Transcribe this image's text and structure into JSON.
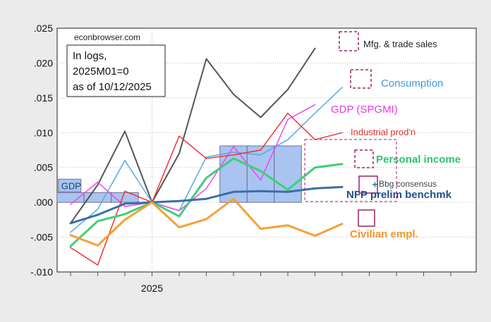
{
  "chart_data": {
    "type": "line",
    "title": "",
    "source": "econbrowser.com",
    "note": [
      "In logs,",
      "2025M01=0",
      "as of 10/12/2025"
    ],
    "xlabel": "",
    "ylabel": "",
    "x": [
      "2024M10",
      "2024M11",
      "2024M12",
      "2025M01",
      "2025M02",
      "2025M03",
      "2025M04",
      "2025M05",
      "2025M06",
      "2025M07",
      "2025M08",
      "2025M09",
      "2025M10",
      "2025M11",
      "2025M12"
    ],
    "x_tick_labels": [
      {
        "x": "2025M01",
        "label": "2025"
      }
    ],
    "ylim": [
      -0.01,
      0.025
    ],
    "y_ticks": [
      -0.01,
      -0.005,
      0.0,
      0.005,
      0.01,
      0.015,
      0.02,
      0.025
    ],
    "y_tick_labels": [
      "-.010",
      "-.005",
      ".000",
      ".005",
      ".010",
      ".015",
      ".020",
      ".025"
    ],
    "gdp_bars": {
      "name": "GDP",
      "color": "#a9c4f0",
      "edge": "#6f6f8f",
      "values": [
        {
          "from": "2024M10",
          "to": "2024M12",
          "value": 0.0014
        },
        {
          "from": "2025M01",
          "to": "2025M03",
          "value": 0.0
        },
        {
          "from": "2025M04",
          "to": "2025M06",
          "value": 0.0081
        }
      ]
    },
    "series": [
      {
        "name": "Mfg. & trade sales",
        "color": "#555555",
        "width": 2,
        "values": [
          -0.003,
          0.0025,
          0.0102,
          0.0,
          0.007,
          0.0206,
          0.0155,
          0.0122,
          0.0162,
          0.0221,
          null,
          null,
          null,
          null,
          null
        ]
      },
      {
        "name": "Consumption",
        "color": "#55a8e8",
        "width": 1.5,
        "values": [
          -0.0043,
          -0.001,
          0.006,
          0.0,
          -0.0012,
          0.0065,
          0.0072,
          0.0068,
          0.009,
          0.0128,
          0.0165,
          null,
          null,
          null,
          null
        ]
      },
      {
        "name": "GDP (SPGMI)",
        "color": "#ee44ee",
        "width": 1.5,
        "values": [
          -0.0003,
          0.0029,
          -0.0006,
          0.0,
          -0.0012,
          0.002,
          0.008,
          0.0032,
          0.0119,
          0.014,
          null,
          null,
          null,
          null,
          null
        ]
      },
      {
        "name": "Industrial prod'n",
        "color": "#ee3333",
        "width": 1.5,
        "values": [
          -0.0065,
          -0.009,
          0.0016,
          0.0,
          0.0095,
          0.0063,
          0.0068,
          0.0075,
          0.0128,
          0.009,
          0.01,
          null,
          null,
          null,
          null
        ]
      },
      {
        "name": "Personal income",
        "color": "#3ecf7a",
        "width": 3,
        "values": [
          -0.0063,
          -0.0027,
          -0.0017,
          0.0,
          -0.002,
          0.0035,
          0.0063,
          0.0045,
          0.0018,
          0.005,
          0.0055,
          null,
          null,
          null,
          null
        ]
      },
      {
        "name": "NFP prelim benchmk",
        "color": "#3b6ea8",
        "width": 3,
        "values": [
          -0.003,
          -0.0018,
          -0.0002,
          0.0,
          0.0002,
          0.0005,
          0.0015,
          0.0016,
          0.0015,
          0.002,
          0.0022,
          null,
          null,
          null,
          null
        ]
      },
      {
        "name": "Civilian empl.",
        "color": "#f7a035",
        "width": 3,
        "values": [
          -0.0047,
          -0.0062,
          -0.0025,
          0.0,
          -0.0036,
          -0.0024,
          0.0005,
          -0.0038,
          -0.0033,
          -0.0048,
          -0.0031,
          null,
          null,
          null,
          null
        ]
      }
    ],
    "bbg_consensus": {
      "name": "Bbg consensus",
      "x": "2025M09",
      "value": 0.0026,
      "marker": "+",
      "color": "#2f7d7d"
    },
    "legend": {
      "Mfg. & trade sales": "Mfg. & trade sales",
      "Consumption": "Consumption",
      "GDP (SPGMI)": "GDP (SPGMI)",
      "Industrial prod'n": "Industrial prod'n",
      "Personal income": "Personal income",
      "Bbg consensus": "Bbg consensus",
      "NFP prelim benchmk": "NFP prelim benchmk",
      "Civilian empl.": "Civilian empl."
    },
    "legend_box_color": "#a0206a"
  }
}
